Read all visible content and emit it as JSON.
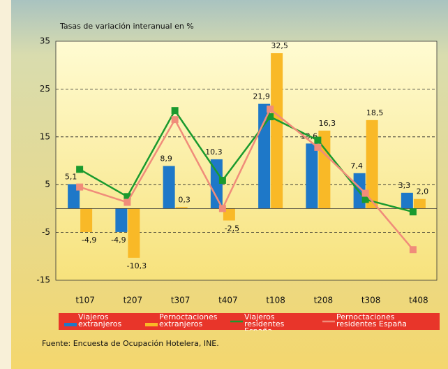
{
  "chart_data": {
    "type": "bar_line",
    "title": "Tasas de variación interanual en %",
    "categories": [
      "t107",
      "t207",
      "t307",
      "t407",
      "t108",
      "t208",
      "t308",
      "t408"
    ],
    "series": [
      {
        "name": "Viajeros extranjeros",
        "kind": "bar",
        "color": "#1e78c8",
        "values": [
          5.1,
          -4.9,
          8.9,
          10.3,
          21.9,
          13.6,
          7.4,
          3.3
        ],
        "value_labels": [
          "5,1",
          "-4,9",
          "8,9",
          "10,3",
          "21,9",
          "13,6",
          "7,4",
          "3,3"
        ]
      },
      {
        "name": "Pernoctaciones extranjeros",
        "kind": "bar",
        "color": "#f9b927",
        "values": [
          -4.9,
          -10.3,
          0.3,
          -2.5,
          32.5,
          16.3,
          18.5,
          2.0
        ],
        "value_labels": [
          "-4,9",
          "-10,3",
          "0,3",
          "-2,5",
          "32,5",
          "16,3",
          "18,5",
          "2,0"
        ]
      },
      {
        "name": "Viajeros residentes España",
        "kind": "line",
        "color": "#1a9a2e",
        "values": [
          8.2,
          2.5,
          20.5,
          5.9,
          19.2,
          14.3,
          1.9,
          -0.7
        ]
      },
      {
        "name": "Pernoctaciones residentes España",
        "kind": "line",
        "color": "#f08c7a",
        "values": [
          4.5,
          1.3,
          18.6,
          0,
          20.8,
          12.8,
          3.2,
          -8.6
        ]
      }
    ],
    "ylim": [
      -15,
      35
    ],
    "yticks": [
      -15,
      -5,
      5,
      15,
      25,
      35
    ],
    "grid": true,
    "source": "Fuente: Encuesta de Ocupación Hotelera, INE."
  }
}
